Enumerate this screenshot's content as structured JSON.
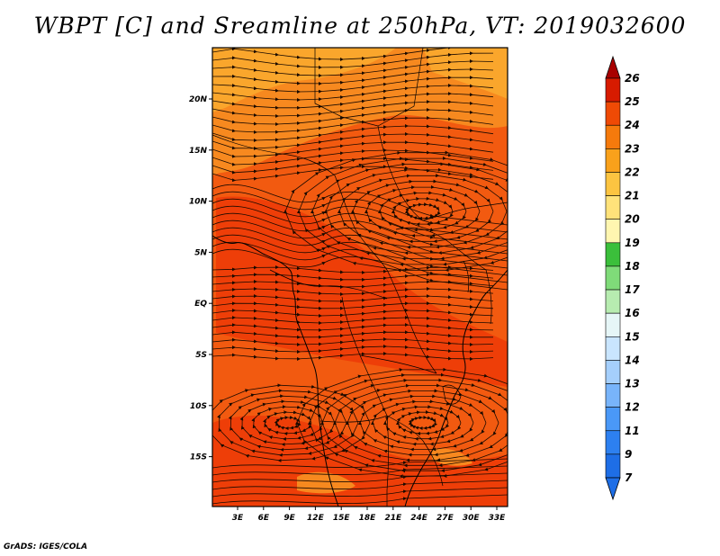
{
  "title": "WBPT [C] and Sreamline at 250hPa, VT: 2019032600",
  "credit": "GrADS: IGES/COLA",
  "map": {
    "lat_labels": [
      "20N",
      "15N",
      "10N",
      "5N",
      "EQ",
      "5S",
      "10S",
      "15S"
    ],
    "lon_labels": [
      "3E",
      "6E",
      "9E",
      "12E",
      "15E",
      "18E",
      "21E",
      "24E",
      "27E",
      "30E",
      "33E"
    ],
    "field_colors": {
      "main": "#f25a10",
      "warm": "#ee3e08",
      "cool": "#f7891f",
      "coolest": "#faa62c",
      "streamline": "#1a0a00"
    }
  },
  "colorbar": {
    "labels": [
      "7",
      "9",
      "11",
      "12",
      "13",
      "14",
      "15",
      "16",
      "17",
      "18",
      "19",
      "20",
      "21",
      "22",
      "23",
      "24",
      "25",
      "26"
    ],
    "colors": [
      "#1e6ee6",
      "#2d80f0",
      "#4a98f7",
      "#78b4fa",
      "#a5cffc",
      "#c9e5fe",
      "#e6f6f7",
      "#b7ecb0",
      "#7fdb79",
      "#3bbf3b",
      "#fff6b0",
      "#ffe27a",
      "#fcc441",
      "#f9a11b",
      "#f57a0c",
      "#ef4a05",
      "#d71b00",
      "#a80000"
    ]
  }
}
